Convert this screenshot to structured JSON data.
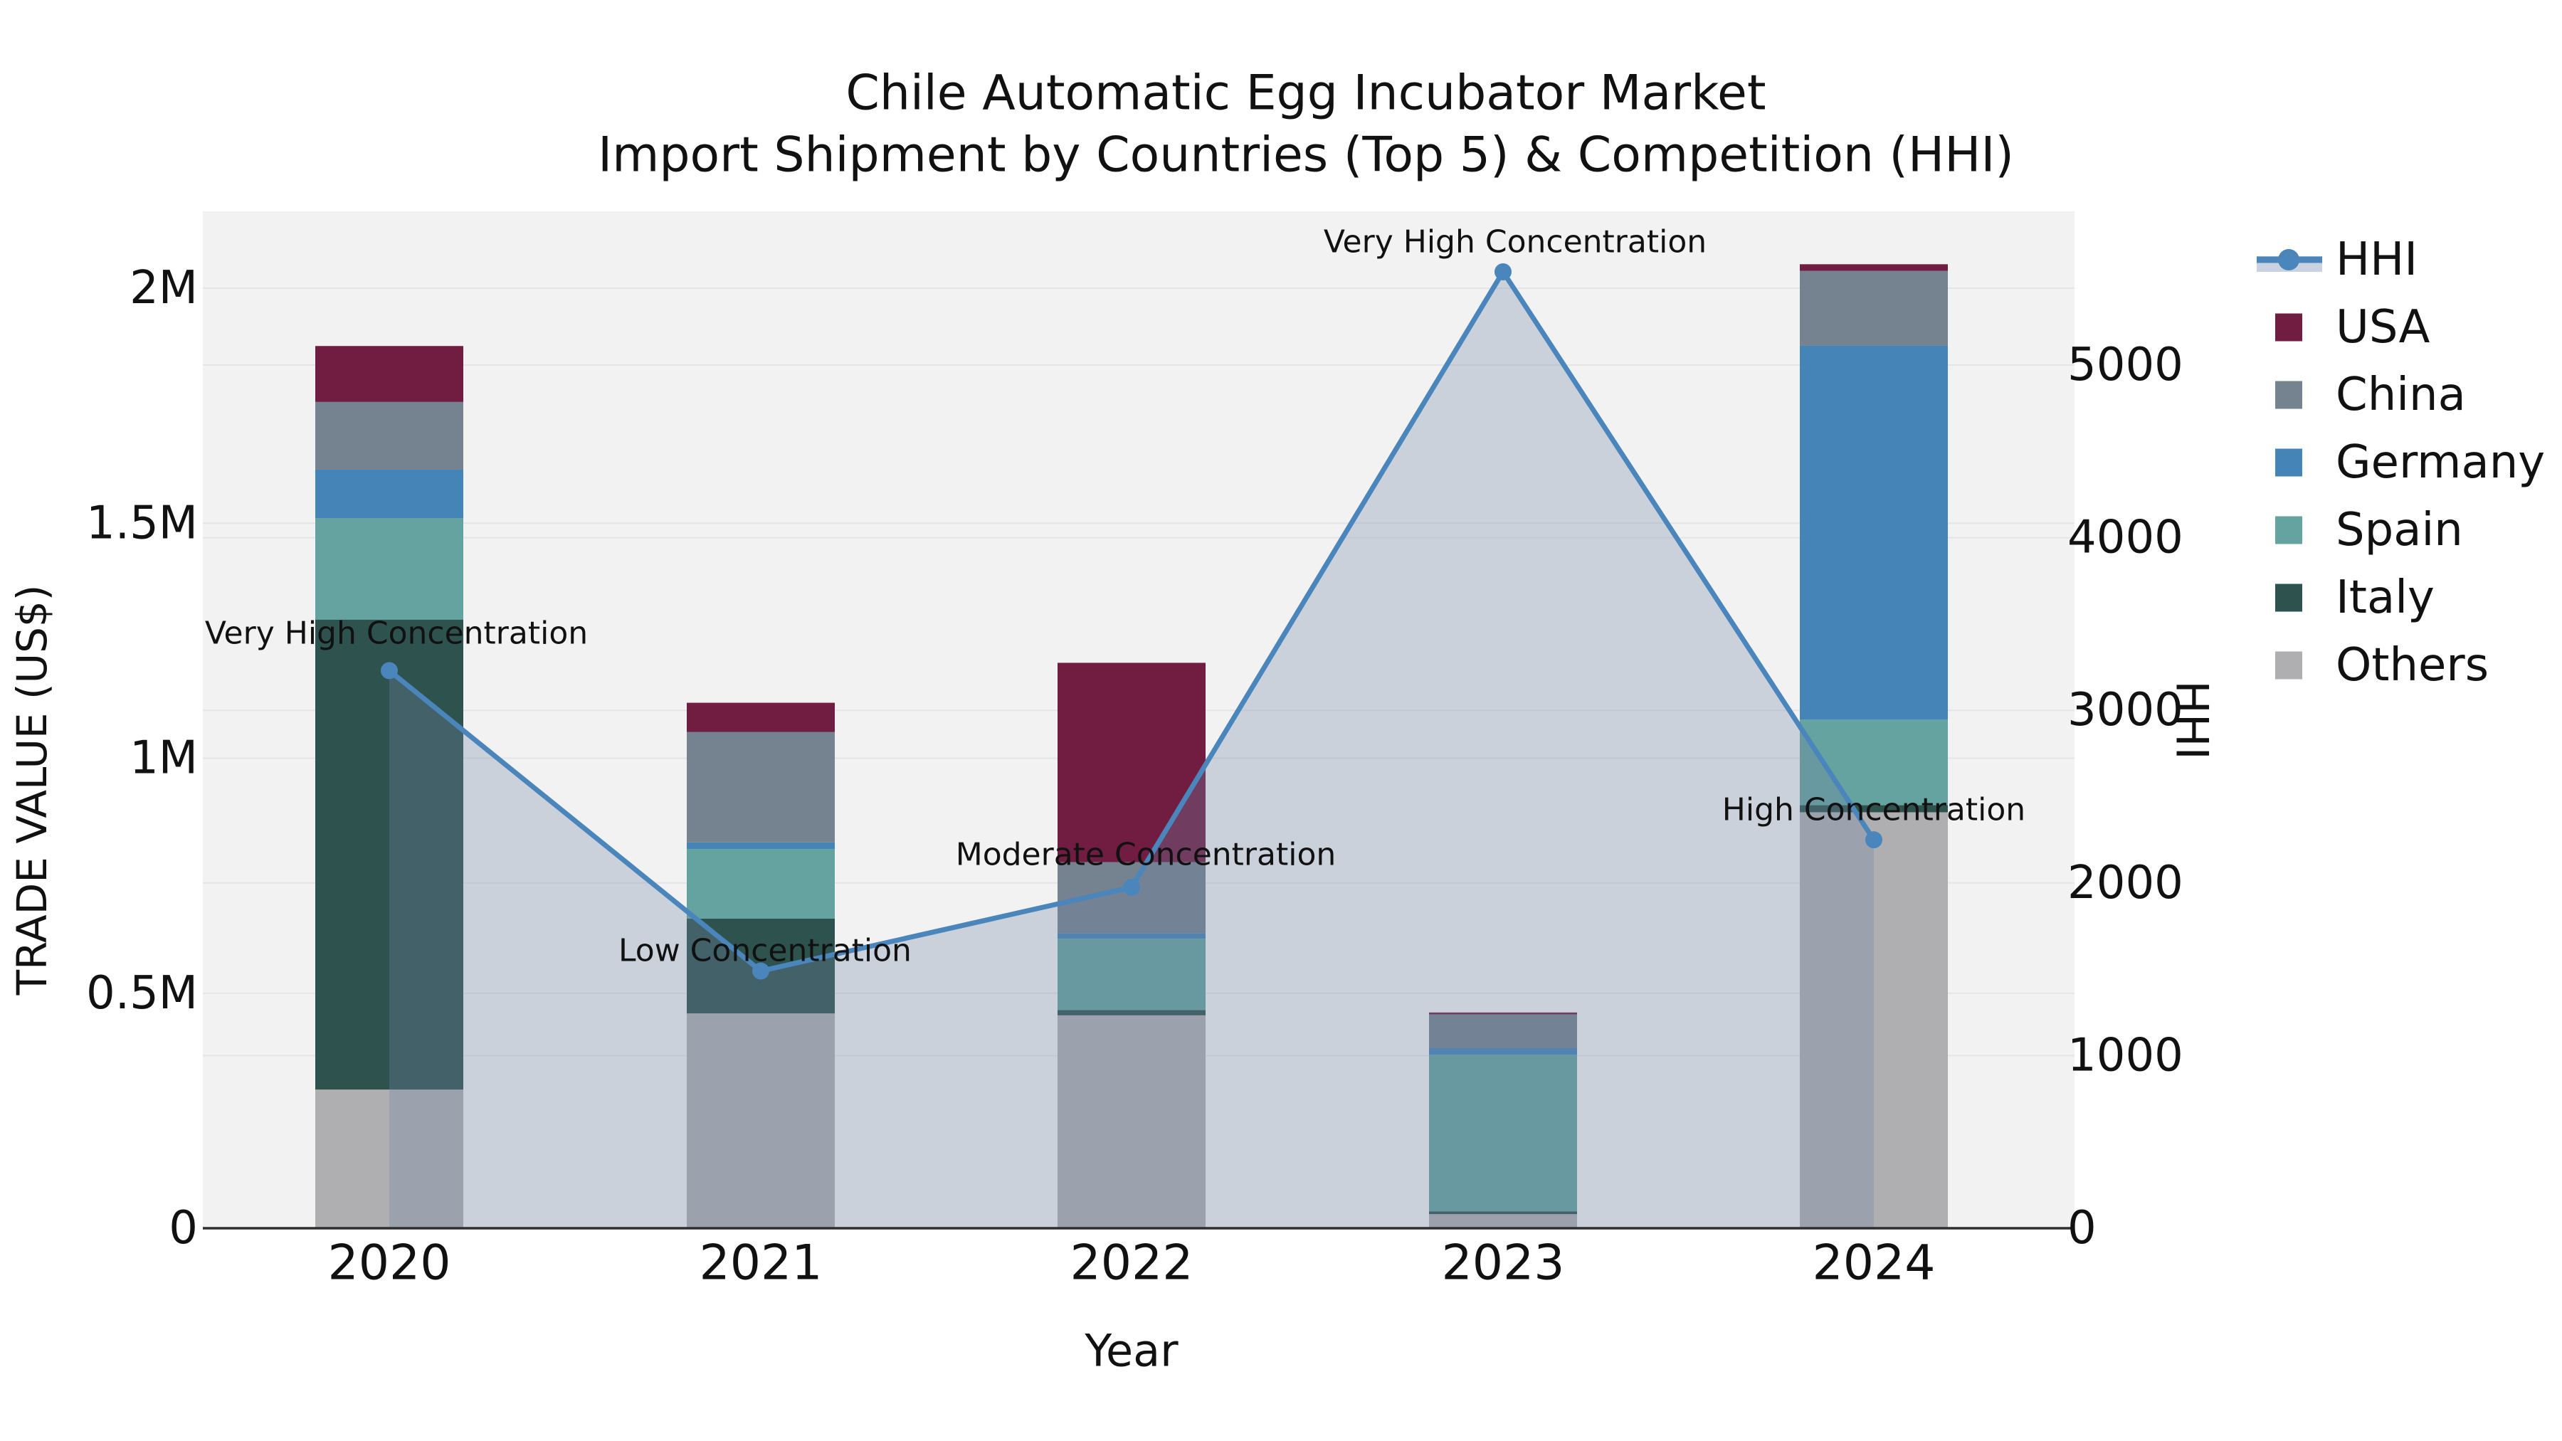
{
  "chart_data": {
    "type": "bar",
    "subtype": "stacked-bars-with-line",
    "title_line1": "Chile Automatic Egg Incubator Market",
    "title_line2": "Import Shipment by Countries (Top 5) & Competition (HHI)",
    "xlabel": "Year",
    "ylabel_left": "TRADE VALUE (US$)",
    "ylabel_right": "HHI",
    "categories": [
      "2020",
      "2021",
      "2022",
      "2023",
      "2024"
    ],
    "value_unit": "M US$",
    "series": [
      {
        "name": "Others",
        "color": "#AFAFB1",
        "values": [
          0.295,
          0.457,
          0.453,
          0.03,
          0.885
        ]
      },
      {
        "name": "Italy",
        "color": "#2E524E",
        "values": [
          1.0,
          0.202,
          0.011,
          0.006,
          0.015
        ]
      },
      {
        "name": "Spain",
        "color": "#65A3A0",
        "values": [
          0.216,
          0.148,
          0.152,
          0.333,
          0.182
        ]
      },
      {
        "name": "Germany",
        "color": "#4484B6",
        "values": [
          0.103,
          0.014,
          0.012,
          0.014,
          0.796
        ]
      },
      {
        "name": "China",
        "color": "#75828F",
        "values": [
          0.144,
          0.235,
          0.151,
          0.072,
          0.159
        ]
      },
      {
        "name": "USA",
        "color": "#701D41",
        "values": [
          0.119,
          0.062,
          0.424,
          0.004,
          0.014
        ]
      }
    ],
    "bar_totals_M": [
      1.877,
      1.118,
      1.203,
      0.459,
      2.051
    ],
    "hhi": {
      "name": "HHI",
      "values": [
        3230,
        1490,
        1975,
        5540,
        2250
      ],
      "line_color": "#4A86BC",
      "area_color": "rgba(112,132,165,0.30)",
      "legend_band_color": "#C9D2DE"
    },
    "annotations": [
      {
        "text": "Very High Concentration",
        "x": 557,
        "y": 890
      },
      {
        "text": "Low Concentration",
        "x": 1075,
        "y": 1336
      },
      {
        "text": "Moderate Concentration",
        "x": 1610,
        "y": 1201
      },
      {
        "text": "Very High Concentration",
        "x": 2129,
        "y": 340
      },
      {
        "text": "High Concentration",
        "x": 2633,
        "y": 1138
      }
    ],
    "left_axis": {
      "ticks": [
        {
          "label": "0",
          "v": 0
        },
        {
          "label": "0.5M",
          "v": 0.5
        },
        {
          "label": "1M",
          "v": 1
        },
        {
          "label": "1.5M",
          "v": 1.5
        },
        {
          "label": "2M",
          "v": 2
        }
      ],
      "range_M": [
        0,
        2.16
      ],
      "grid": true
    },
    "right_axis": {
      "ticks": [
        {
          "label": "0",
          "v": 0
        },
        {
          "label": "1000",
          "v": 1000
        },
        {
          "label": "2000",
          "v": 2000
        },
        {
          "label": "3000",
          "v": 3000
        },
        {
          "label": "4000",
          "v": 4000
        },
        {
          "label": "5000",
          "v": 5000
        }
      ],
      "range": [
        0,
        5890
      ],
      "grid": true
    },
    "legend": [
      "HHI",
      "USA",
      "China",
      "Germany",
      "Spain",
      "Italy",
      "Others"
    ],
    "legend_position": "right",
    "colors": {
      "plot_bg": "#F2F2F3",
      "gridline": "#E4E5E7",
      "axis_line": "#2F2F2F",
      "text": "#111111"
    }
  }
}
